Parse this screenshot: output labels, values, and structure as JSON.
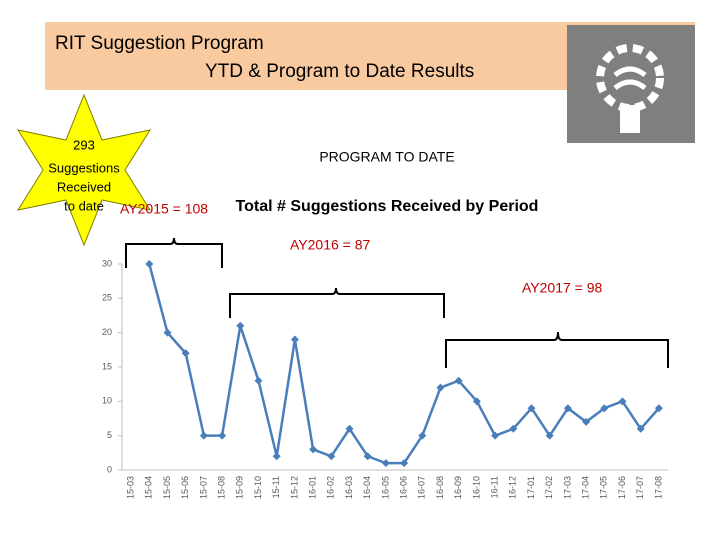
{
  "header": {
    "title_line1": "RIT Suggestion Program",
    "title_line2": "YTD & Program to Date Results"
  },
  "badge": {
    "lines": [
      "293",
      "Suggestions",
      "Received",
      "to date"
    ]
  },
  "chart_data": {
    "type": "line",
    "subtitle": "PROGRAM TO DATE",
    "title": "Total # Suggestions Received by Period",
    "categories": [
      "15-03",
      "15-04",
      "15-05",
      "15-06",
      "15-07",
      "15-08",
      "15-09",
      "15-10",
      "15-11",
      "15-12",
      "16-01",
      "16-02",
      "16-03",
      "16-04",
      "16-05",
      "16-06",
      "16-07",
      "16-08",
      "16-09",
      "16-10",
      "16-11",
      "16-12",
      "17-01",
      "17-02",
      "17-03",
      "17-04",
      "17-05",
      "17-06",
      "17-07",
      "17-08"
    ],
    "series": [
      {
        "name": "Suggestions",
        "color": "#4a7ebb",
        "values": [
          null,
          30,
          20,
          17,
          5,
          5,
          21,
          13,
          2,
          19,
          3,
          2,
          6,
          2,
          1,
          1,
          5,
          12,
          13,
          10,
          5,
          6,
          9,
          5,
          9,
          7,
          9,
          10,
          6,
          9
        ]
      }
    ],
    "ylim": [
      0,
      30
    ],
    "yticks": [
      0,
      5,
      10,
      15,
      20,
      25,
      30
    ],
    "annotations": [
      "AY2015 = 108",
      "AY2016 = 87",
      "AY2017 = 98"
    ]
  }
}
